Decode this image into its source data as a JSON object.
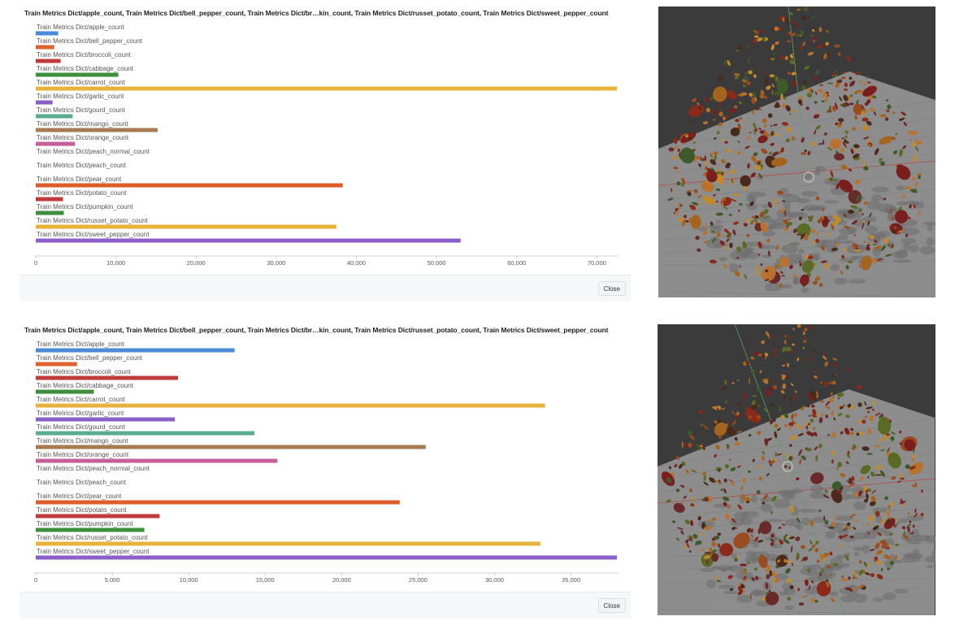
{
  "panels": [
    {
      "title": "Train Metrics Dict/apple_count, Train Metrics Dict/bell_pepper_count, Train Metrics Dict/br…kin_count, Train Metrics Dict/russet_potato_count, Train Metrics Dict/sweet_pepper_count",
      "close_label": "Close",
      "chart_data": {
        "type": "bar",
        "orientation": "horizontal",
        "categories": [
          "Train Metrics Dict/apple_count",
          "Train Metrics Dict/bell_pepper_count",
          "Train Metrics Dict/broccoli_count",
          "Train Metrics Dict/cabbage_count",
          "Train Metrics Dict/carrot_count",
          "Train Metrics Dict/garlic_count",
          "Train Metrics Dict/gourd_count",
          "Train Metrics Dict/mango_count",
          "Train Metrics Dict/orange_count",
          "Train Metrics Dict/peach_normal_count",
          "Train Metrics Dict/peach_count",
          "Train Metrics Dict/pear_count",
          "Train Metrics Dict/potato_count",
          "Train Metrics Dict/pumpkin_count",
          "Train Metrics Dict/russet_potato_count",
          "Train Metrics Dict/sweet_pepper_count"
        ],
        "values": [
          2800,
          2300,
          3100,
          10300,
          72500,
          2100,
          4600,
          15200,
          4900,
          0,
          0,
          38300,
          3400,
          3500,
          37500,
          53000
        ],
        "colors": [
          "#4a8ad8",
          "#e0622e",
          "#c03b3b",
          "#3d8e3d",
          "#e8b33a",
          "#8a5fc8",
          "#5bab91",
          "#a87a52",
          "#c4609a",
          "#888888",
          "#888888",
          "#dd5d2a",
          "#c03b3b",
          "#3d8e3d",
          "#e8b33a",
          "#8a5fc8"
        ],
        "ticks": [
          0,
          10000,
          20000,
          30000,
          40000,
          50000,
          60000,
          70000
        ],
        "tick_labels": [
          "0",
          "10,000",
          "20,000",
          "30,000",
          "40,000",
          "50,000",
          "60,000",
          "70,000"
        ],
        "xlim": [
          0,
          72500
        ]
      }
    },
    {
      "title": "Train Metrics Dict/apple_count, Train Metrics Dict/bell_pepper_count, Train Metrics Dict/br…kin_count, Train Metrics Dict/russet_potato_count, Train Metrics Dict/sweet_pepper_count",
      "close_label": "Close",
      "chart_data": {
        "type": "bar",
        "orientation": "horizontal",
        "categories": [
          "Train Metrics Dict/apple_count",
          "Train Metrics Dict/bell_pepper_count",
          "Train Metrics Dict/broccoli_count",
          "Train Metrics Dict/cabbage_count",
          "Train Metrics Dict/carrot_count",
          "Train Metrics Dict/garlic_count",
          "Train Metrics Dict/gourd_count",
          "Train Metrics Dict/mango_count",
          "Train Metrics Dict/orange_count",
          "Train Metrics Dict/peach_normal_count",
          "Train Metrics Dict/peach_count",
          "Train Metrics Dict/pear_count",
          "Train Metrics Dict/potato_count",
          "Train Metrics Dict/pumpkin_count",
          "Train Metrics Dict/russet_potato_count",
          "Train Metrics Dict/sweet_pepper_count"
        ],
        "values": [
          13000,
          2700,
          9300,
          3800,
          33300,
          9100,
          14300,
          25500,
          15800,
          0,
          0,
          23800,
          8100,
          7100,
          33000,
          38000
        ],
        "colors": [
          "#4a8ad8",
          "#e0622e",
          "#c03b3b",
          "#3d8e3d",
          "#e8b33a",
          "#8a5fc8",
          "#5bab91",
          "#a87a52",
          "#c4609a",
          "#888888",
          "#888888",
          "#dd5d2a",
          "#c03b3b",
          "#3d8e3d",
          "#e8b33a",
          "#8a5fc8"
        ],
        "ticks": [
          0,
          5000,
          10000,
          15000,
          20000,
          25000,
          30000,
          35000
        ],
        "tick_labels": [
          "0",
          "5,000",
          "10,000",
          "15,000",
          "20,000",
          "25,000",
          "30,000",
          "35,000"
        ],
        "xlim": [
          0,
          38000
        ]
      }
    }
  ]
}
